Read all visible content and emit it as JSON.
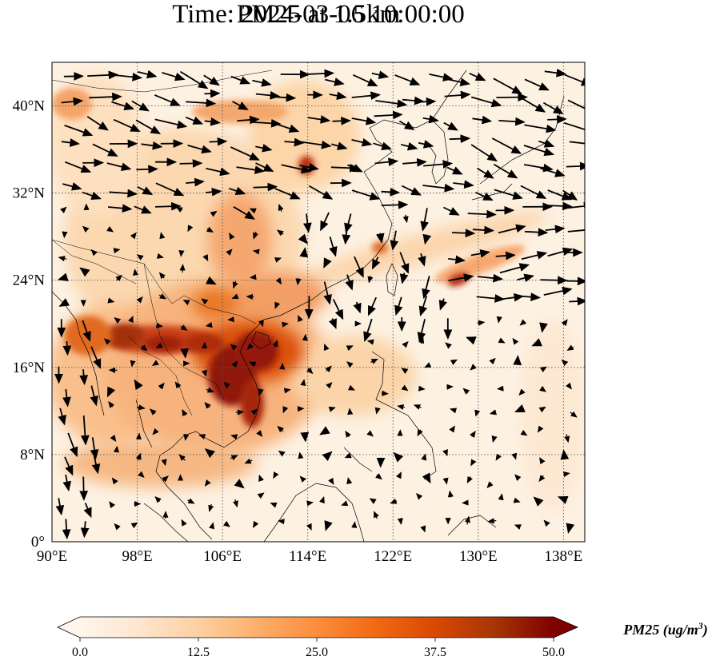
{
  "title_line1": "PM25 at 1.5km",
  "title_line2": "Time: 2024-03-06 10:00:00",
  "map": {
    "lon_range": [
      90,
      140
    ],
    "lat_range": [
      0,
      44
    ],
    "lon_ticks": [
      {
        "value": 90,
        "label": "90°E"
      },
      {
        "value": 98,
        "label": "98°E"
      },
      {
        "value": 106,
        "label": "106°E"
      },
      {
        "value": 114,
        "label": "114°E"
      },
      {
        "value": 122,
        "label": "122°E"
      },
      {
        "value": 130,
        "label": "130°E"
      },
      {
        "value": 138,
        "label": "138°E"
      }
    ],
    "lat_ticks": [
      {
        "value": 0,
        "label": "0°"
      },
      {
        "value": 8,
        "label": "8°N"
      },
      {
        "value": 16,
        "label": "16°N"
      },
      {
        "value": 24,
        "label": "24°N"
      },
      {
        "value": 32,
        "label": "32°N"
      },
      {
        "value": 40,
        "label": "40°N"
      }
    ],
    "gridlines": "dotted",
    "pm25_hotspots": [
      {
        "lon": 107.5,
        "lat": 15.5,
        "value": 50
      },
      {
        "lon": 108.8,
        "lat": 13.0,
        "value": 45
      },
      {
        "lon": 107.0,
        "lat": 18.5,
        "value": 42
      },
      {
        "lon": 102.5,
        "lat": 18.2,
        "value": 40
      },
      {
        "lon": 97.8,
        "lat": 19.3,
        "value": 40
      },
      {
        "lon": 95.0,
        "lat": 18.0,
        "value": 35
      },
      {
        "lon": 114.0,
        "lat": 35.5,
        "value": 35
      },
      {
        "lon": 127.5,
        "lat": 24.3,
        "value": 33
      },
      {
        "lon": 111.0,
        "lat": 22.0,
        "value": 25
      },
      {
        "lon": 101.0,
        "lat": 24.0,
        "value": 20
      }
    ]
  },
  "colorbar": {
    "min": 0.0,
    "max": 50.0,
    "tick_labels": [
      "0.0",
      "12.5",
      "25.0",
      "37.5",
      "50.0"
    ],
    "colors": [
      "#fff5eb",
      "#fee6ce",
      "#fdd0a2",
      "#fdae6b",
      "#fd8d3c",
      "#f16913",
      "#d94801",
      "#a63603",
      "#7f0000"
    ],
    "label": "PM25 (ug/m",
    "label_sup": "3",
    "label_end": ")"
  }
}
